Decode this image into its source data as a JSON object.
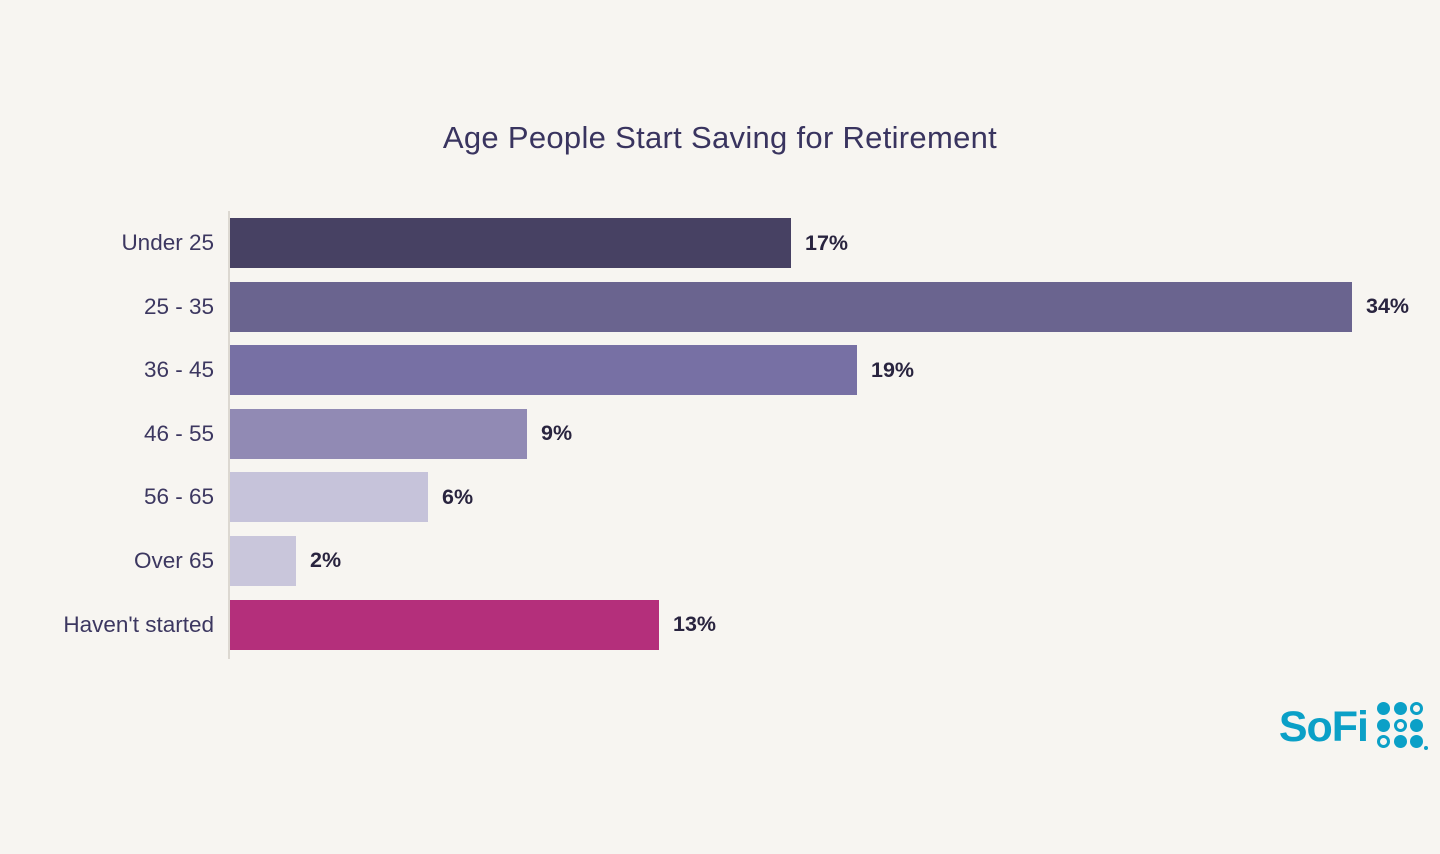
{
  "page": {
    "background_color": "#F7F5F1"
  },
  "chart_data": {
    "type": "bar",
    "orientation": "horizontal",
    "title": "Age People Start Saving for Retirement",
    "categories": [
      "Under 25",
      "25 - 35",
      "36 - 45",
      "46 - 55",
      "56 - 65",
      "Over 65",
      "Haven't started"
    ],
    "values": [
      17,
      34,
      19,
      9,
      6,
      2,
      13
    ],
    "value_labels": [
      "17%",
      "34%",
      "19%",
      "9%",
      "6%",
      "2%",
      "13%"
    ],
    "bar_colors": [
      "#474163",
      "#6A648F",
      "#7770A4",
      "#918AB4",
      "#C6C3DA",
      "#C9C6DB",
      "#B42F7B"
    ],
    "xlim": [
      0,
      34
    ],
    "grid": false,
    "legend": "none",
    "value_label_position": "end-of-bar",
    "title_color": "#39345F",
    "label_color": "#3C3760",
    "value_label_color": "#29243F",
    "axis_line_color": "#DCD8D1"
  },
  "branding": {
    "logo_text": "SoFi",
    "logo_color": "#0BA0C7",
    "dot_grid_pattern": [
      "filled",
      "filled",
      "outline",
      "filled",
      "outline",
      "filled",
      "outline",
      "filled",
      "filled"
    ]
  }
}
